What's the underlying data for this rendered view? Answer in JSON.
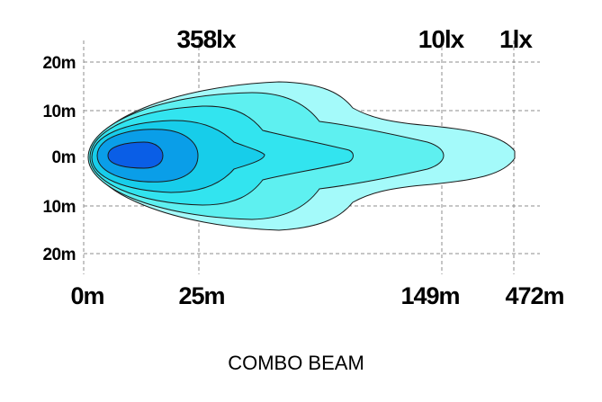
{
  "chart_data": {
    "type": "isolux-beam-pattern",
    "title": "COMBO BEAM",
    "lux_labels": [
      "358lx",
      "10lx",
      "1lx"
    ],
    "distance_labels": [
      "0m",
      "25m",
      "149m",
      "472m"
    ],
    "width_labels": [
      "20m",
      "10m",
      "0m",
      "10m",
      "20m"
    ],
    "width_values": [
      20,
      10,
      0,
      -10,
      -20
    ],
    "grid": true,
    "contours": [
      {
        "level": "1lx",
        "color": "#a4fafa"
      },
      {
        "level": "10lx",
        "color": "#5ef0f0"
      },
      {
        "level": "mid-1",
        "color": "#32e4ef"
      },
      {
        "level": "mid-2",
        "color": "#17cdea"
      },
      {
        "level": "358lx",
        "color": "#0a9ee8"
      },
      {
        "level": "core",
        "color": "#0a5ee6"
      }
    ]
  }
}
